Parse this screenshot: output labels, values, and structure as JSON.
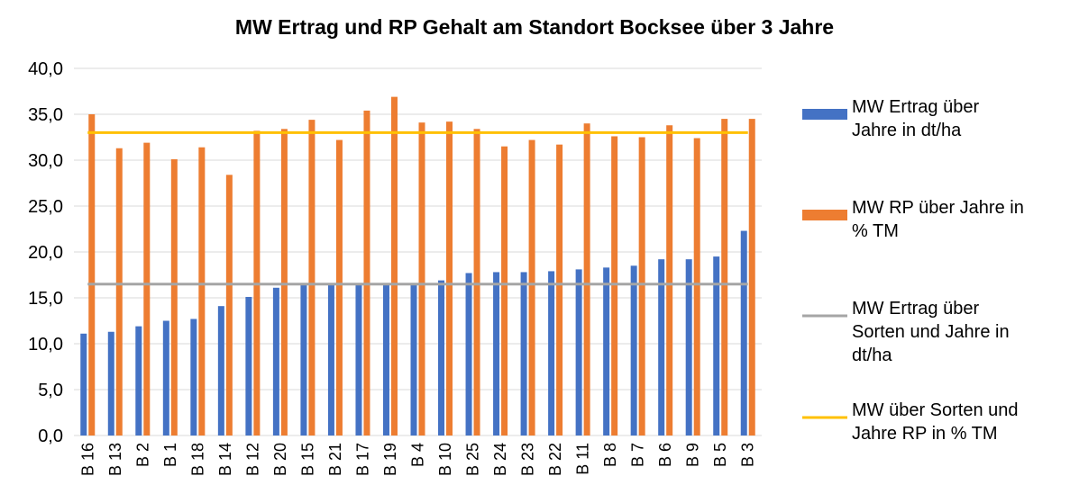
{
  "chart_data": {
    "type": "bar",
    "title": "MW Ertrag und RP Gehalt  am Standort Bocksee über 3 Jahre",
    "categories": [
      "B 16",
      "B 13",
      "B 2",
      "B 1",
      "B 18",
      "B 14",
      "B 12",
      "B 20",
      "B 15",
      "B 21",
      "B 17",
      "B 19",
      "B 4",
      "B 10",
      "B 25",
      "B 24",
      "B 23",
      "B 22",
      "B 11",
      "B 8",
      "B 7",
      "B 6",
      "B 9",
      "B 5",
      "B 3"
    ],
    "series": [
      {
        "name": "MW Ertrag über Jahre in dt/ha",
        "type": "bar",
        "color": "#4472c4",
        "values": [
          11.1,
          11.3,
          11.9,
          12.5,
          12.7,
          14.1,
          15.1,
          16.1,
          16.5,
          16.5,
          16.5,
          16.5,
          16.5,
          16.9,
          17.7,
          17.8,
          17.8,
          17.9,
          18.1,
          18.3,
          18.5,
          19.2,
          19.2,
          19.5,
          22.3
        ]
      },
      {
        "name": "MW RP über Jahre in % TM",
        "type": "bar",
        "color": "#ed7d31",
        "values": [
          35.0,
          31.3,
          31.9,
          30.1,
          31.4,
          28.4,
          33.2,
          33.4,
          34.4,
          32.2,
          35.4,
          36.9,
          34.1,
          34.2,
          33.4,
          31.5,
          32.2,
          31.7,
          34.0,
          32.6,
          32.5,
          33.8,
          32.4,
          34.5,
          34.5
        ]
      },
      {
        "name": "MW Ertrag über Sorten und Jahre in dt/ha",
        "type": "line",
        "color": "#a5a5a5",
        "values": [
          16.5,
          16.5,
          16.5,
          16.5,
          16.5,
          16.5,
          16.5,
          16.5,
          16.5,
          16.5,
          16.5,
          16.5,
          16.5,
          16.5,
          16.5,
          16.5,
          16.5,
          16.5,
          16.5,
          16.5,
          16.5,
          16.5,
          16.5,
          16.5,
          16.5
        ]
      },
      {
        "name": "MW über Sorten und Jahre RP in % TM",
        "type": "line",
        "color": "#ffc000",
        "values": [
          33.0,
          33.0,
          33.0,
          33.0,
          33.0,
          33.0,
          33.0,
          33.0,
          33.0,
          33.0,
          33.0,
          33.0,
          33.0,
          33.0,
          33.0,
          33.0,
          33.0,
          33.0,
          33.0,
          33.0,
          33.0,
          33.0,
          33.0,
          33.0,
          33.0
        ]
      }
    ],
    "ylim": [
      0,
      40
    ],
    "yticks": [
      {
        "value": 0,
        "label": "0,0"
      },
      {
        "value": 5,
        "label": "5,0"
      },
      {
        "value": 10,
        "label": "10,0"
      },
      {
        "value": 15,
        "label": "15,0"
      },
      {
        "value": 20,
        "label": "20,0"
      },
      {
        "value": 25,
        "label": "25,0"
      },
      {
        "value": 30,
        "label": "30,0"
      },
      {
        "value": 35,
        "label": "35,0"
      },
      {
        "value": 40,
        "label": "40,0"
      }
    ],
    "grid": true,
    "legend": "right"
  }
}
